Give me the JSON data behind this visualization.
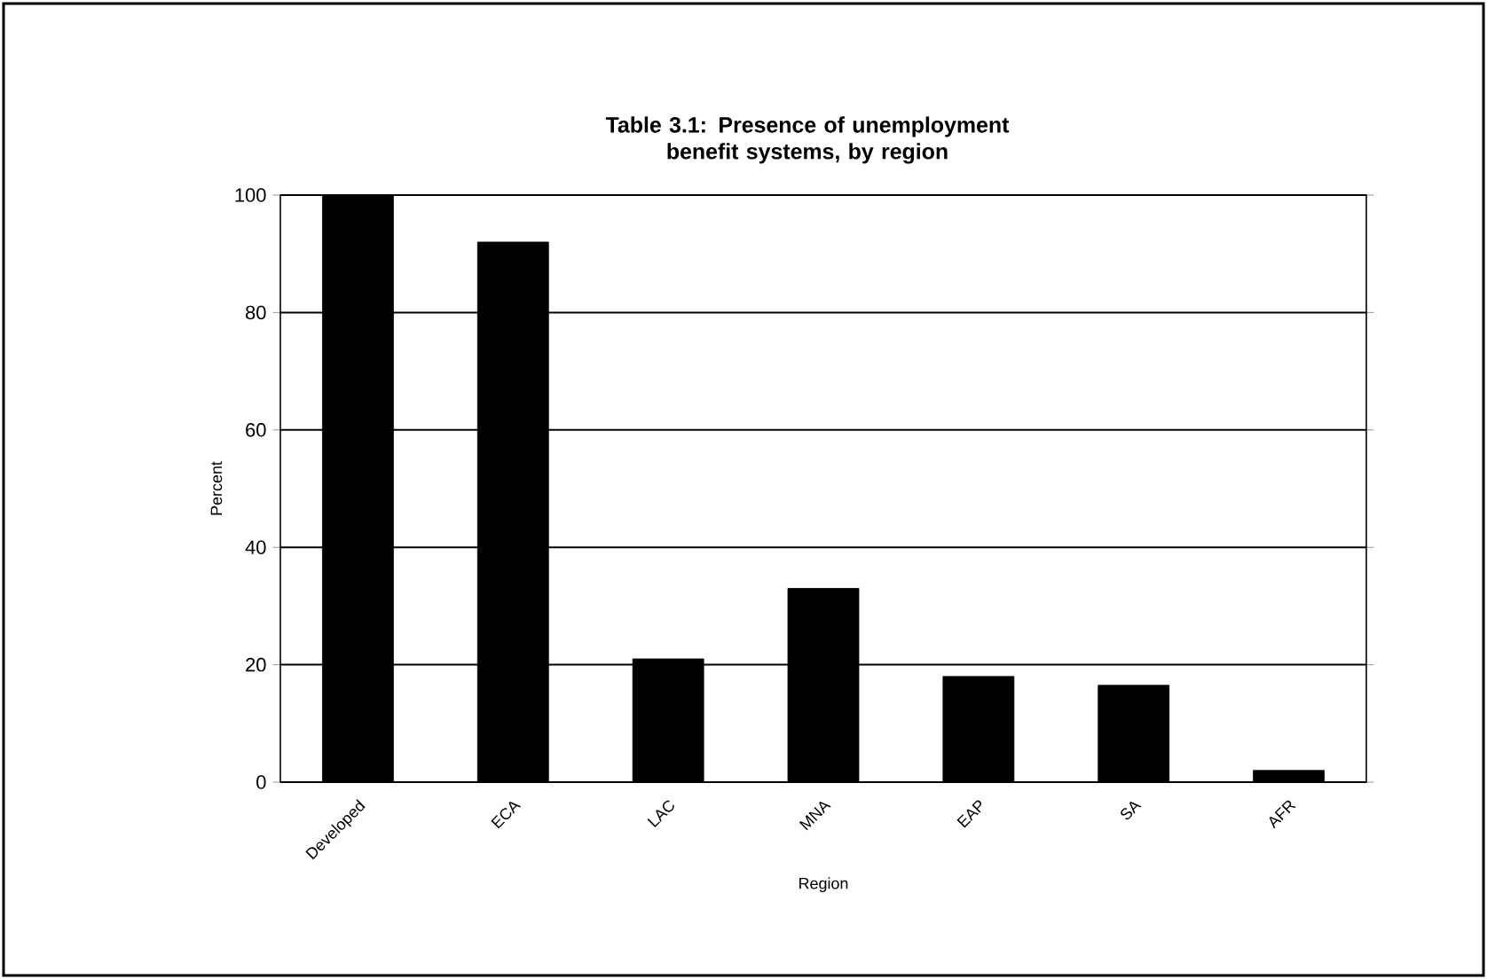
{
  "chart_data": {
    "type": "bar",
    "title": "Table 3.1: Presence of unemployment benefit systems, by region",
    "xlabel": "Region",
    "ylabel": "Percent",
    "categories": [
      "Developed",
      "ECA",
      "LAC",
      "MNA",
      "EAP",
      "SA",
      "AFR"
    ],
    "values": [
      100,
      92,
      21,
      33,
      18,
      16.5,
      2
    ],
    "color": "#000000",
    "ylim": [
      0,
      100
    ],
    "yticks": [
      0,
      20,
      40,
      60,
      80,
      100
    ],
    "grid": "y"
  }
}
